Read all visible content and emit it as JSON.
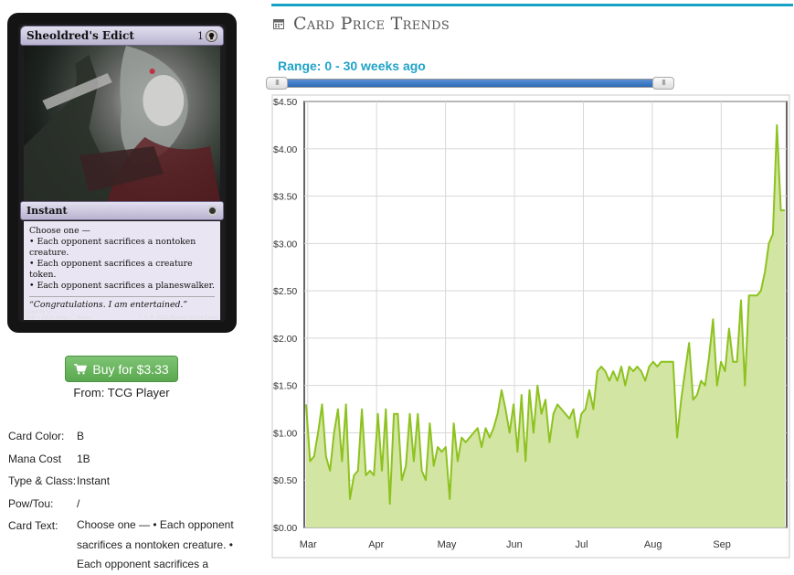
{
  "card": {
    "name": "Sheoldred's Edict",
    "mana_cost": "1",
    "type_line": "Instant",
    "rules_intro": "Choose one —",
    "rules": [
      "• Each opponent sacrifices a nontoken creature.",
      "• Each opponent sacrifices a creature token.",
      "• Each opponent sacrifices a planeswalker."
    ],
    "flavor": "“Congratulations. I am entertained.”",
    "footer_line1": "108/271  U",
    "footer_line2": "ONE • EN  ✒ Helge C. Balzer",
    "footer_copyright": "™ & © 2023 Wizards of the Coast"
  },
  "buy": {
    "label": "Buy for $3.33",
    "from": "From: TCG Player",
    "icon": "shopping-cart-icon"
  },
  "details": [
    {
      "label": "Card Color:",
      "value": "B"
    },
    {
      "label": "Mana Cost",
      "value": "1B"
    },
    {
      "label": "Type & Class:",
      "value": "Instant"
    },
    {
      "label": "Pow/Tou:",
      "value": "/"
    },
    {
      "label": "Card Text:",
      "value": "Choose one — • Each opponent sacrifices a nontoken creature. • Each opponent sacrifices a"
    }
  ],
  "trends": {
    "title": "Card Price Trends",
    "icon": "calendar-icon",
    "range_label": "Range: 0 - 30 weeks ago",
    "accent": "#17a2c6",
    "slider_handle": "III"
  },
  "chart_data": {
    "type": "area",
    "title": "",
    "xlabel": "",
    "ylabel": "",
    "ylim": [
      0,
      4.5
    ],
    "yticks": [
      "$0.00",
      "$0.50",
      "$1.00",
      "$1.50",
      "$2.00",
      "$2.50",
      "$3.00",
      "$3.50",
      "$4.00",
      "$4.50"
    ],
    "xticks": [
      "Mar",
      "Apr",
      "May",
      "Jun",
      "Jul",
      "Aug",
      "Sep"
    ],
    "grid": true,
    "line_color": "#8dc21f",
    "fill_color": "#d3e5a3",
    "series": [
      {
        "values": [
          1.3,
          0.7,
          0.75,
          1.0,
          1.3,
          0.75,
          0.6,
          1.0,
          1.25,
          0.7,
          1.3,
          0.3,
          0.55,
          0.6,
          1.25,
          0.55,
          0.6,
          0.55,
          1.2,
          0.6,
          1.25,
          0.25,
          1.2,
          1.2,
          0.5,
          0.65,
          1.2,
          0.7,
          1.2,
          0.6,
          0.5,
          1.1,
          0.65,
          0.85,
          0.8,
          0.85,
          0.3,
          1.1,
          0.7,
          0.95,
          0.9,
          0.95,
          1.0,
          1.05,
          0.85,
          1.05,
          0.95,
          1.05,
          1.2,
          1.45,
          1.25,
          1.0,
          1.3,
          0.8,
          1.4,
          0.7,
          1.45,
          1.0,
          1.5,
          1.2,
          1.35,
          0.9,
          1.2,
          1.3,
          1.25,
          1.2,
          1.15,
          1.25,
          0.95,
          1.2,
          1.25,
          1.45,
          1.25,
          1.65,
          1.7,
          1.65,
          1.55,
          1.65,
          1.55,
          1.7,
          1.5,
          1.7,
          1.65,
          1.7,
          1.65,
          1.55,
          1.7,
          1.75,
          1.7,
          1.75,
          1.75,
          1.75,
          1.75,
          0.95,
          1.35,
          1.65,
          1.95,
          1.35,
          1.4,
          1.55,
          1.5,
          1.8,
          2.2,
          1.5,
          1.75,
          1.65,
          2.1,
          1.75,
          1.75,
          2.4,
          1.5,
          2.45,
          2.45,
          2.45,
          2.5,
          2.7,
          3.0,
          3.1,
          4.25,
          3.35,
          3.35
        ]
      }
    ]
  }
}
